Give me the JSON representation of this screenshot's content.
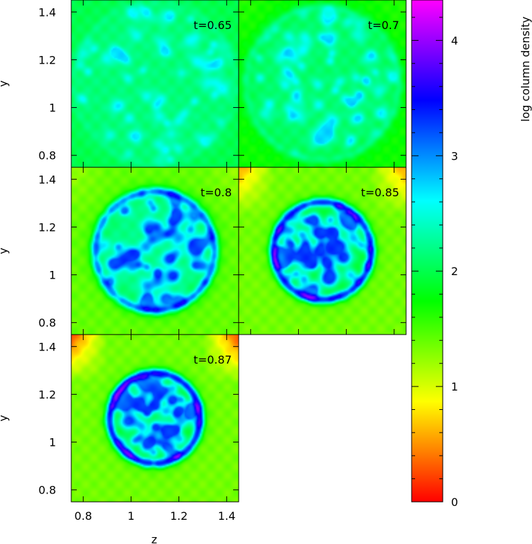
{
  "chart_data": {
    "type": "heatmap",
    "layout": "grid of 5 panels (3 rows x 2 columns), last cell empty",
    "xlabel": "z",
    "ylabel": "y",
    "xlim": [
      0.75,
      1.45
    ],
    "ylim": [
      0.75,
      1.45
    ],
    "x_ticks": [
      0.8,
      1,
      1.2,
      1.4
    ],
    "x_tick_labels": [
      "0.8",
      "1",
      "1.2",
      "1.4"
    ],
    "y_ticks": [
      0.8,
      1,
      1.2,
      1.4
    ],
    "y_tick_labels": [
      "0.8",
      "1",
      "1.2",
      "1.4"
    ],
    "panels": [
      {
        "label": "t=0.65",
        "time": 0.65,
        "ring_radius": 0.34,
        "ring_strength": 0.05,
        "background": 2.0,
        "interior": 2.15,
        "corner": 2.0
      },
      {
        "label": "t=0.7",
        "time": 0.7,
        "ring_radius": 0.32,
        "ring_strength": 0.15,
        "background": 1.7,
        "interior": 2.1,
        "corner": 1.6
      },
      {
        "label": "t=0.8",
        "time": 0.8,
        "ring_radius": 0.25,
        "ring_strength": 0.7,
        "background": 1.4,
        "interior": 2.2,
        "corner": 1.2
      },
      {
        "label": "t=0.85",
        "time": 0.85,
        "ring_radius": 0.205,
        "ring_strength": 0.95,
        "background": 1.35,
        "interior": 2.0,
        "corner": 0.5
      },
      {
        "label": "t=0.87",
        "time": 0.87,
        "ring_radius": 0.19,
        "ring_strength": 1.0,
        "background": 1.35,
        "interior": 1.95,
        "corner": 0.2
      }
    ],
    "colorbar": {
      "label": "log column density",
      "range": [
        0,
        4.35
      ],
      "ticks": [
        0,
        1,
        2,
        3,
        4
      ],
      "tick_labels": [
        "0",
        "1",
        "2",
        "3",
        "4"
      ],
      "colormap": [
        "#ff0000",
        "#ffff00",
        "#00ff00",
        "#00ffff",
        "#0000ff",
        "#ff00ff"
      ]
    }
  }
}
